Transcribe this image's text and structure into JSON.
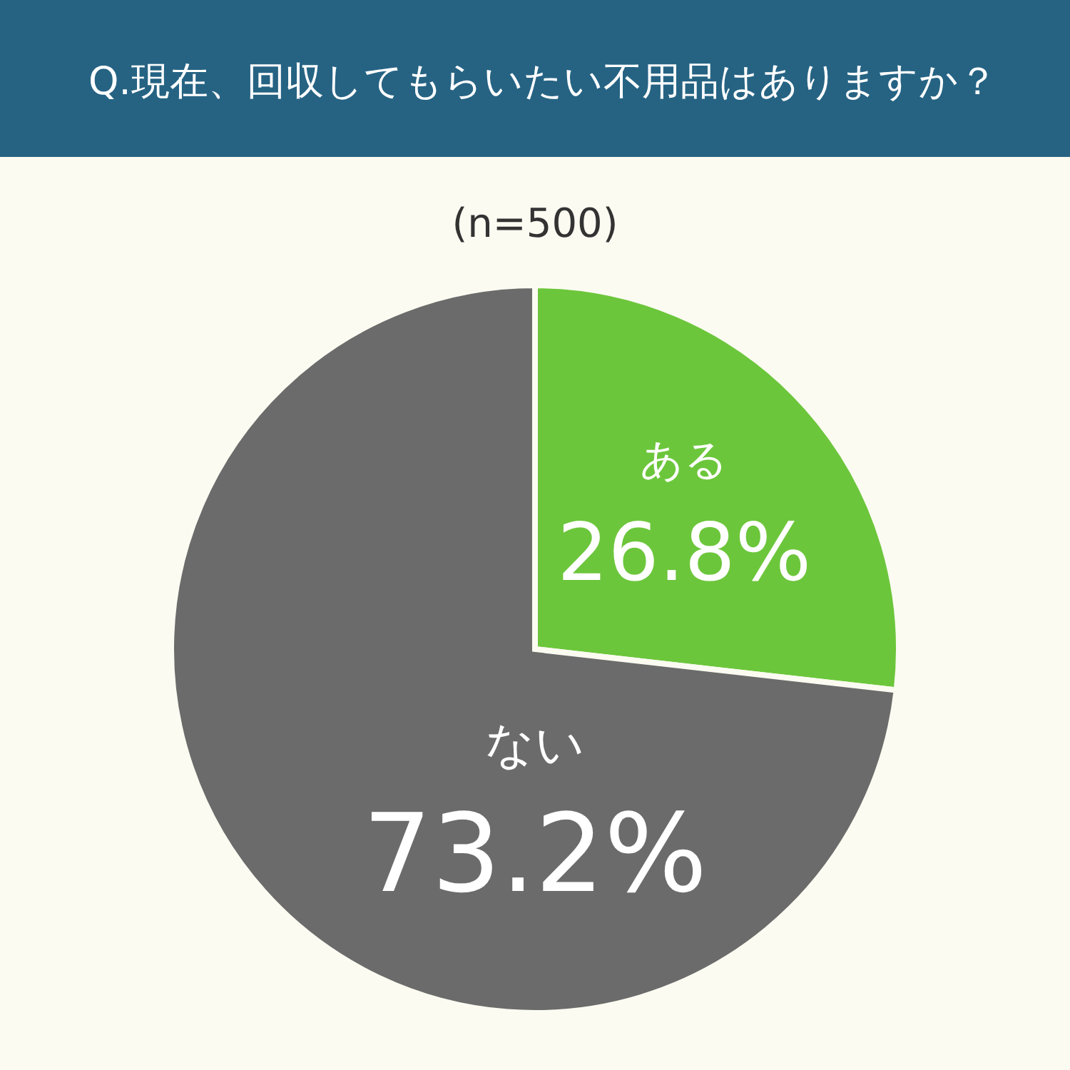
{
  "chart_data": {
    "type": "pie",
    "title": "Q.現在、回収してもらいたい不用品はありますか？",
    "subtitle": "(n=500)",
    "categories": [
      "ある",
      "ない"
    ],
    "values": [
      26.8,
      73.2
    ],
    "colors": [
      "#6cc63b",
      "#6b6b6b"
    ],
    "value_labels": [
      "26.8%",
      "73.2%"
    ]
  }
}
